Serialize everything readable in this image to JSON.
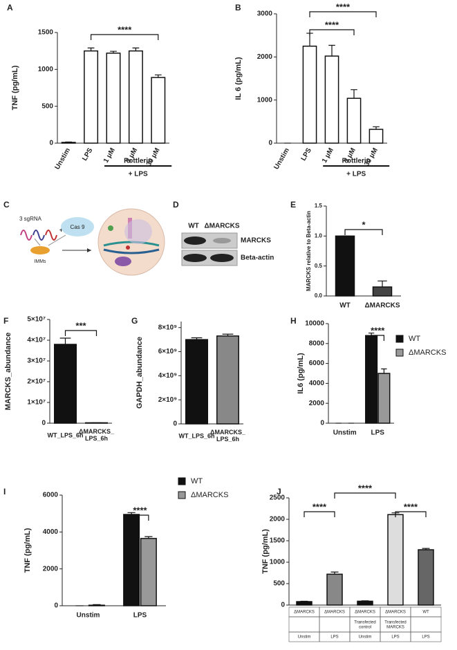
{
  "chart_data": [
    {
      "type": "bar",
      "letter": "A",
      "ylabel": "TNF (pg/mL)",
      "categories": [
        "Unstim",
        "LPS",
        "1 μM",
        "3 μM",
        "30 μM"
      ],
      "values": [
        10,
        1250,
        1220,
        1250,
        890
      ],
      "errors": [
        5,
        40,
        25,
        40,
        35
      ],
      "color": "#ffffff",
      "ylim": [
        0,
        1500
      ],
      "yticks": [
        0,
        500,
        1000,
        1500
      ],
      "annotations": [
        {
          "text": "****",
          "from": 1,
          "to": 4
        }
      ],
      "group": {
        "label": "Rottlerin",
        "sublabel": "+ LPS",
        "from": 2,
        "to": 4
      }
    },
    {
      "type": "bar",
      "letter": "B",
      "ylabel": "IL 6 (pg/mL)",
      "categories": [
        "Unstim",
        "LPS",
        "1 μM",
        "3 μM",
        "30 μM"
      ],
      "values": [
        0,
        2250,
        2020,
        1040,
        320
      ],
      "errors": [
        0,
        300,
        250,
        200,
        60
      ],
      "color": "#ffffff",
      "ylim": [
        0,
        3000
      ],
      "yticks": [
        0,
        1000,
        2000,
        3000
      ],
      "annotations": [
        {
          "text": "****",
          "from": 1,
          "to": 3
        },
        {
          "text": "****",
          "from": 1,
          "to": 4
        }
      ],
      "group": {
        "label": "Rottlerin",
        "sublabel": "+ LPS",
        "from": 2,
        "to": 4
      }
    },
    {
      "type": "bar",
      "letter": "E",
      "ylabel": "MARCKS relative to Beta-actin",
      "categories": [
        "WT",
        "ΔMARCKS"
      ],
      "values": [
        1.0,
        0.15
      ],
      "errors": [
        0,
        0.1
      ],
      "colors": [
        "#111111",
        "#444444"
      ],
      "ylim": [
        0,
        1.5
      ],
      "yticks": [
        {
          "value": 0,
          "label": "0.0"
        },
        {
          "value": 0.5,
          "label": "0.5"
        },
        {
          "value": 1,
          "label": "1.0"
        },
        {
          "value": 1.5,
          "label": "1.5"
        }
      ],
      "annotations": [
        {
          "text": "*",
          "from": 0,
          "to": 1
        }
      ]
    },
    {
      "type": "bar",
      "letter": "F",
      "ylabel": "MARCKS_abundance",
      "categories": [
        "WT_LPS_6h",
        "ΔMARCKS_ LPS_6h"
      ],
      "values": [
        38000000,
        200000
      ],
      "errors": [
        3000000,
        0
      ],
      "colors": [
        "#111111",
        "#111111"
      ],
      "ylim": [
        0,
        50000000
      ],
      "yticks": [
        0,
        {
          "value": 10000000,
          "label": "1×10⁷"
        },
        {
          "value": 20000000,
          "label": "2×10⁷"
        },
        {
          "value": 30000000,
          "label": "3×10⁷"
        },
        {
          "value": 40000000,
          "label": "4×10⁷"
        },
        {
          "value": 50000000,
          "label": "5×10⁷"
        }
      ],
      "annotations": [
        {
          "text": "***",
          "from": 0,
          "to": 1
        }
      ]
    },
    {
      "type": "bar",
      "letter": "G",
      "ylabel": "GAPDH_abundance",
      "categories": [
        "WT_LPS_6h",
        "ΔMARCKS_ LPS_6h"
      ],
      "values": [
        7000000000,
        7300000000
      ],
      "errors": [
        150000000,
        150000000
      ],
      "colors": [
        "#111111",
        "#888888"
      ],
      "ylim": [
        0,
        8500000000
      ],
      "yticks": [
        0,
        {
          "value": 2000000000,
          "label": "2×10⁹"
        },
        {
          "value": 4000000000,
          "label": "4×10⁹"
        },
        {
          "value": 6000000000,
          "label": "6×10⁹"
        },
        {
          "value": 8000000000,
          "label": "8×10⁹"
        }
      ]
    },
    {
      "type": "grouped_bar",
      "letter": "H",
      "ylabel": "IL6 (pg/mL)",
      "categories": [
        "Unstim",
        "LPS"
      ],
      "series": [
        {
          "name": "WT",
          "color": "#111111",
          "values": [
            0,
            8800
          ],
          "errors": [
            0,
            250
          ]
        },
        {
          "name": "ΔMARCKS",
          "color": "#999999",
          "values": [
            0,
            5000
          ],
          "errors": [
            0,
            450
          ]
        }
      ],
      "ylim": [
        0,
        10000
      ],
      "yticks": [
        0,
        2000,
        4000,
        6000,
        8000,
        10000
      ],
      "legend": "right",
      "annotations": [
        {
          "text": "****",
          "from": 1,
          "to": 1
        }
      ]
    },
    {
      "type": "grouped_bar",
      "letter": "I",
      "ylabel": "TNF (pg/mL)",
      "categories": [
        "Unstim",
        "LPS"
      ],
      "series": [
        {
          "name": "WT",
          "color": "#111111",
          "values": [
            0,
            4950
          ],
          "errors": [
            0,
            100
          ]
        },
        {
          "name": "ΔMARCKS",
          "color": "#999999",
          "values": [
            30,
            3650
          ],
          "errors": [
            30,
            100
          ]
        }
      ],
      "ylim": [
        0,
        6000
      ],
      "yticks": [
        0,
        2000,
        4000,
        6000
      ],
      "legend": "right",
      "annotations": [
        {
          "text": "****",
          "from": 1,
          "to": 1
        }
      ]
    },
    {
      "type": "bar",
      "letter": "J",
      "ylabel": "TNF (pg/mL)",
      "categories": [
        null,
        null,
        null,
        null,
        null
      ],
      "values": [
        80,
        720,
        90,
        2110,
        1290
      ],
      "errors": [
        10,
        50,
        10,
        40,
        30
      ],
      "colors": [
        "#111111",
        "#888888",
        "#111111",
        "#dddddd",
        "#666666"
      ],
      "ylim": [
        0,
        2500
      ],
      "yticks": [
        0,
        500,
        1000,
        1500,
        2000,
        2500
      ],
      "annotations": [
        {
          "text": "****",
          "from": 0,
          "to": 1
        },
        {
          "text": "****",
          "from": 3,
          "to": 4
        },
        {
          "text": "****",
          "from": 1,
          "to": 3
        }
      ],
      "table": [
        [
          "ΔMARCKS",
          "ΔMARCKS",
          "ΔMARCKS",
          "ΔMARCKS",
          "WT"
        ],
        [
          null,
          null,
          "Transfected control",
          "Transfected MARCKS",
          null
        ],
        [
          "Unstim",
          "LPS",
          "Unstim",
          "LPS",
          "LPS"
        ]
      ]
    }
  ],
  "diagram": {
    "letter": "C",
    "sgrna": "3 sgRNA",
    "cas9": "Cas 9",
    "cells": "IMMs"
  },
  "blot": {
    "letter": "D",
    "lanes": [
      "WT",
      "ΔMARCKS"
    ],
    "bands": [
      "MARCKS",
      "Beta-actin"
    ]
  }
}
